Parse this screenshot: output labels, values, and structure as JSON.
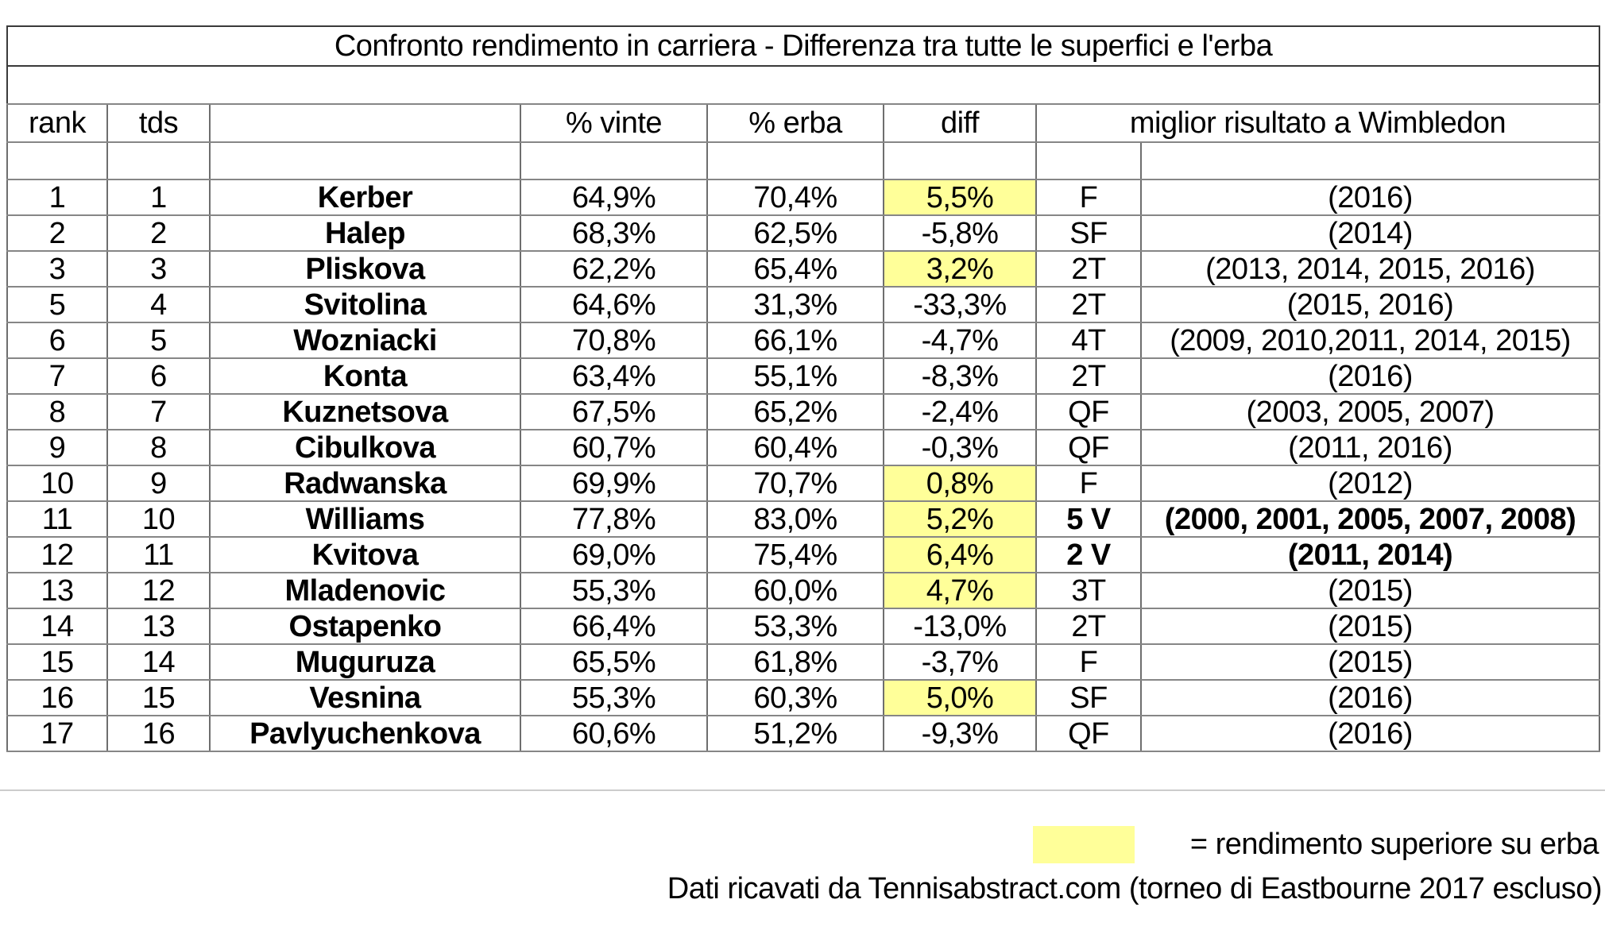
{
  "title": "Confronto rendimento in carriera  - Differenza tra tutte le superfici e l'erba",
  "header": {
    "rank": "rank",
    "tds": "tds",
    "name": "",
    "pct_vinte": "% vinte",
    "pct_erba": "% erba",
    "diff": "diff",
    "best": "miglior risultato a Wimbledon"
  },
  "chart_data": {
    "type": "table",
    "title": "Confronto rendimento in carriera  - Differenza tra tutte le superfici e l'erba",
    "columns": [
      "rank",
      "tds",
      "",
      "% vinte",
      "% erba",
      "diff",
      "miglior risultato a Wimbledon"
    ],
    "highlight_meaning": "rendimento superiore su erba",
    "rows": [
      {
        "rank": "1",
        "tds": "1",
        "name": "Kerber",
        "pct_vinte": "64,9%",
        "pct_erba": "70,4%",
        "diff": "5,5%",
        "grass_better": true,
        "best_result": "F",
        "years": "(2016)",
        "bold": false
      },
      {
        "rank": "2",
        "tds": "2",
        "name": "Halep",
        "pct_vinte": "68,3%",
        "pct_erba": "62,5%",
        "diff": "-5,8%",
        "grass_better": false,
        "best_result": "SF",
        "years": "(2014)",
        "bold": false
      },
      {
        "rank": "3",
        "tds": "3",
        "name": "Pliskova",
        "pct_vinte": "62,2%",
        "pct_erba": "65,4%",
        "diff": "3,2%",
        "grass_better": true,
        "best_result": "2T",
        "years": "(2013, 2014, 2015, 2016)",
        "bold": false
      },
      {
        "rank": "5",
        "tds": "4",
        "name": "Svitolina",
        "pct_vinte": "64,6%",
        "pct_erba": "31,3%",
        "diff": "-33,3%",
        "grass_better": false,
        "best_result": "2T",
        "years": "(2015, 2016)",
        "bold": false
      },
      {
        "rank": "6",
        "tds": "5",
        "name": "Wozniacki",
        "pct_vinte": "70,8%",
        "pct_erba": "66,1%",
        "diff": "-4,7%",
        "grass_better": false,
        "best_result": "4T",
        "years": "(2009, 2010,2011, 2014, 2015)",
        "bold": false
      },
      {
        "rank": "7",
        "tds": "6",
        "name": "Konta",
        "pct_vinte": "63,4%",
        "pct_erba": "55,1%",
        "diff": "-8,3%",
        "grass_better": false,
        "best_result": "2T",
        "years": "(2016)",
        "bold": false
      },
      {
        "rank": "8",
        "tds": "7",
        "name": "Kuznetsova",
        "pct_vinte": "67,5%",
        "pct_erba": "65,2%",
        "diff": "-2,4%",
        "grass_better": false,
        "best_result": "QF",
        "years": "(2003, 2005, 2007)",
        "bold": false
      },
      {
        "rank": "9",
        "tds": "8",
        "name": "Cibulkova",
        "pct_vinte": "60,7%",
        "pct_erba": "60,4%",
        "diff": "-0,3%",
        "grass_better": false,
        "best_result": "QF",
        "years": "(2011, 2016)",
        "bold": false
      },
      {
        "rank": "10",
        "tds": "9",
        "name": "Radwanska",
        "pct_vinte": "69,9%",
        "pct_erba": "70,7%",
        "diff": "0,8%",
        "grass_better": true,
        "best_result": "F",
        "years": "(2012)",
        "bold": false
      },
      {
        "rank": "11",
        "tds": "10",
        "name": "Williams",
        "pct_vinte": "77,8%",
        "pct_erba": "83,0%",
        "diff": "5,2%",
        "grass_better": true,
        "best_result": "5 V",
        "years": "(2000, 2001, 2005, 2007, 2008)",
        "bold": true
      },
      {
        "rank": "12",
        "tds": "11",
        "name": "Kvitova",
        "pct_vinte": "69,0%",
        "pct_erba": "75,4%",
        "diff": "6,4%",
        "grass_better": true,
        "best_result": "2 V",
        "years": "(2011, 2014)",
        "bold": true
      },
      {
        "rank": "13",
        "tds": "12",
        "name": "Mladenovic",
        "pct_vinte": "55,3%",
        "pct_erba": "60,0%",
        "diff": "4,7%",
        "grass_better": true,
        "best_result": "3T",
        "years": "(2015)",
        "bold": false
      },
      {
        "rank": "14",
        "tds": "13",
        "name": "Ostapenko",
        "pct_vinte": "66,4%",
        "pct_erba": "53,3%",
        "diff": "-13,0%",
        "grass_better": false,
        "best_result": "2T",
        "years": "(2015)",
        "bold": false
      },
      {
        "rank": "15",
        "tds": "14",
        "name": "Muguruza",
        "pct_vinte": "65,5%",
        "pct_erba": "61,8%",
        "diff": "-3,7%",
        "grass_better": false,
        "best_result": "F",
        "years": "(2015)",
        "bold": false
      },
      {
        "rank": "16",
        "tds": "15",
        "name": "Vesnina",
        "pct_vinte": "55,3%",
        "pct_erba": "60,3%",
        "diff": "5,0%",
        "grass_better": true,
        "best_result": "SF",
        "years": "(2016)",
        "bold": false
      },
      {
        "rank": "17",
        "tds": "16",
        "name": "Pavlyuchenkova",
        "pct_vinte": "60,6%",
        "pct_erba": "51,2%",
        "diff": "-9,3%",
        "grass_better": false,
        "best_result": "QF",
        "years": "(2016)",
        "bold": false
      }
    ]
  },
  "legend": {
    "label": "= rendimento superiore su erba",
    "highlight_color": "#ffff99"
  },
  "source": "Dati ricavati da Tennisabstract.com (torneo di Eastbourne 2017 escluso)"
}
